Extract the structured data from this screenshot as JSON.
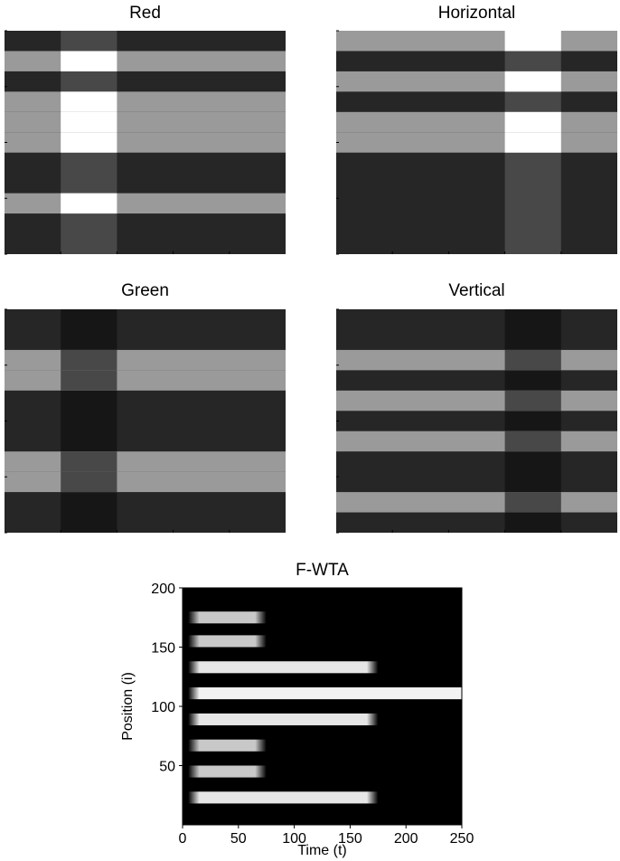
{
  "chart_data": [
    {
      "type": "heatmap",
      "title": "Red",
      "background": "#262626",
      "band_column": {
        "x": [
          1,
          2
        ],
        "color": "#484848"
      },
      "rows": [
        {
          "y": 9.5,
          "color": "#9a9a9a",
          "overlap_color": "#ffffff"
        },
        {
          "y": 7.5,
          "color": "#9a9a9a",
          "overlap_color": "#ffffff"
        },
        {
          "y": 6.5,
          "color": "#9a9a9a",
          "overlap_color": "#ffffff"
        },
        {
          "y": 5.5,
          "color": "#9a9a9a",
          "overlap_color": "#ffffff"
        },
        {
          "y": 2.5,
          "color": "#9a9a9a",
          "overlap_color": "#ffffff"
        }
      ]
    },
    {
      "type": "heatmap",
      "title": "Horizontal",
      "background": "#262626",
      "band_column": {
        "x": [
          3,
          4
        ],
        "color": "#484848"
      },
      "rows": [
        {
          "y": 10.5,
          "color": "#9a9a9a",
          "overlap_color": "#ffffff"
        },
        {
          "y": 8.5,
          "color": "#9a9a9a",
          "overlap_color": "#ffffff"
        },
        {
          "y": 6.5,
          "color": "#9a9a9a",
          "overlap_color": "#ffffff"
        },
        {
          "y": 5.5,
          "color": "#9a9a9a",
          "overlap_color": "#ffffff"
        }
      ]
    },
    {
      "type": "heatmap",
      "title": "Green",
      "background": "#262626",
      "band_column": {
        "x": [
          1,
          2
        ],
        "color": "#161616"
      },
      "rows": [
        {
          "y": 8.5,
          "color": "#9a9a9a",
          "overlap_color": "#484848"
        },
        {
          "y": 7.5,
          "color": "#9a9a9a",
          "overlap_color": "#484848"
        },
        {
          "y": 3.5,
          "color": "#9a9a9a",
          "overlap_color": "#484848"
        },
        {
          "y": 2.5,
          "color": "#9a9a9a",
          "overlap_color": "#484848"
        }
      ]
    },
    {
      "type": "heatmap",
      "title": "Vertical",
      "background": "#262626",
      "band_column": {
        "x": [
          3,
          4
        ],
        "color": "#161616"
      },
      "rows": [
        {
          "y": 8.5,
          "color": "#9a9a9a",
          "overlap_color": "#484848"
        },
        {
          "y": 6.5,
          "color": "#9a9a9a",
          "overlap_color": "#484848"
        },
        {
          "y": 4.5,
          "color": "#9a9a9a",
          "overlap_color": "#484848"
        },
        {
          "y": 1.5,
          "color": "#9a9a9a",
          "overlap_color": "#484848"
        }
      ]
    },
    {
      "type": "heatmap",
      "title": "F-WTA",
      "xlabel": "Time (t)",
      "ylabel": "Position (i)",
      "xlim": [
        0,
        250
      ],
      "ylim": [
        0,
        200
      ],
      "xticks": [
        0,
        50,
        100,
        150,
        200,
        250
      ],
      "yticks": [
        50,
        100,
        150,
        200
      ],
      "background": "#000000",
      "rows": [
        {
          "y": 175,
          "t_end": 75,
          "color": "#c8c8c8"
        },
        {
          "y": 155,
          "t_end": 75,
          "color": "#c8c8c8"
        },
        {
          "y": 133,
          "t_end": 175,
          "color": "#e6e6e6"
        },
        {
          "y": 111,
          "t_end": 250,
          "color": "#f2f2f2"
        },
        {
          "y": 89,
          "t_end": 175,
          "color": "#e6e6e6"
        },
        {
          "y": 67,
          "t_end": 75,
          "color": "#c8c8c8"
        },
        {
          "y": 45,
          "t_end": 75,
          "color": "#c8c8c8"
        },
        {
          "y": 23,
          "t_end": 175,
          "color": "#e6e6e6"
        }
      ]
    }
  ]
}
